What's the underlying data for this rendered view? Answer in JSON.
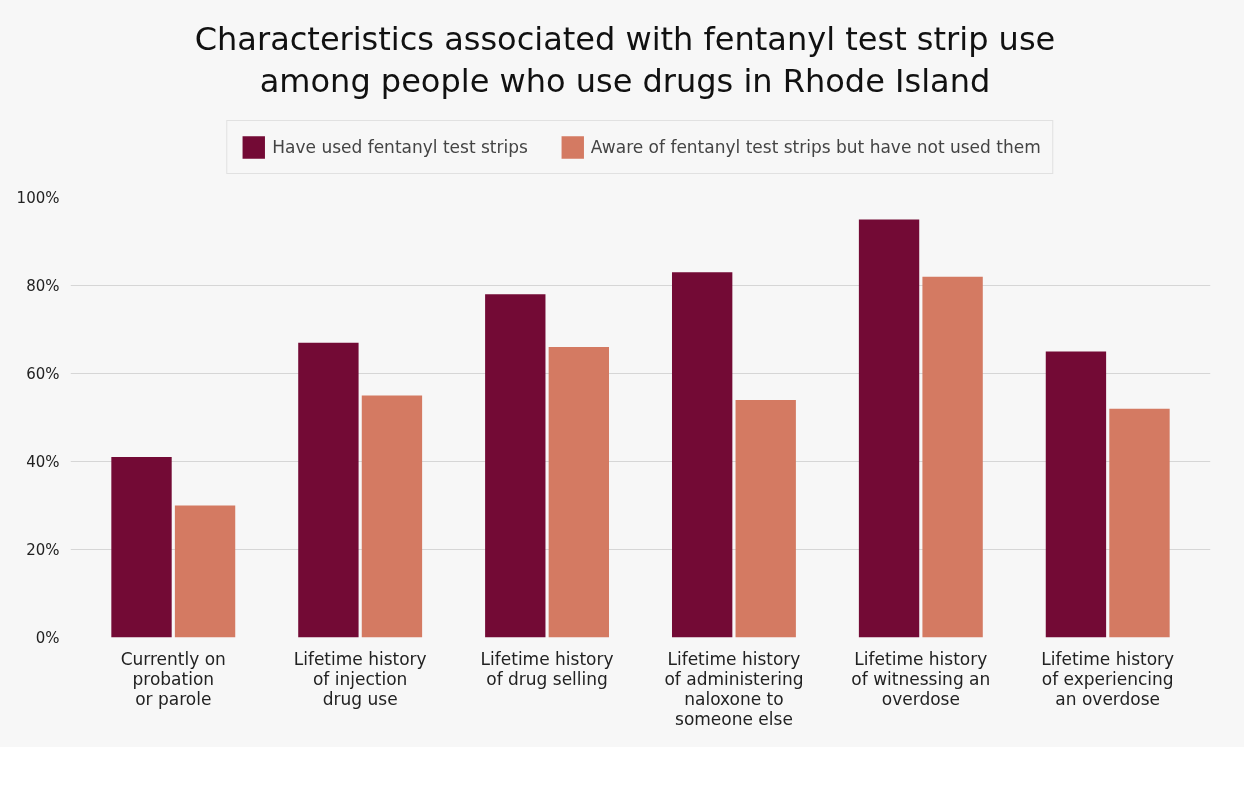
{
  "chart_data": {
    "type": "bar",
    "title": "Characteristics associated with fentanyl test strip use\namong people who use drugs in Rhode Island",
    "categories": [
      "Currently on\nprobation\nor parole",
      "Lifetime history\nof injection\ndrug use",
      "Lifetime history\nof drug selling",
      "Lifetime history\nof administering\nnaloxone to\nsomeone else",
      "Lifetime history\nof witnessing an\noverdose",
      "Lifetime history\nof experiencing\nan overdose"
    ],
    "series": [
      {
        "name": "Have used fentanyl test strips",
        "color": "#730a35",
        "values": [
          41,
          67,
          78,
          83,
          95,
          65
        ]
      },
      {
        "name": "Aware of fentanyl test strips but have not used them",
        "color": "#d47a62",
        "values": [
          30,
          55,
          66,
          54,
          82,
          52
        ]
      }
    ],
    "ylim": [
      0,
      100
    ],
    "yticks": [
      {
        "value": 0,
        "label": "0%"
      },
      {
        "value": 20,
        "label": "20%"
      },
      {
        "value": 40,
        "label": "40%"
      },
      {
        "value": 60,
        "label": "60%"
      },
      {
        "value": 80,
        "label": "80%"
      },
      {
        "value": 100,
        "label": "100%"
      }
    ],
    "grid": "y",
    "legend": "top"
  }
}
